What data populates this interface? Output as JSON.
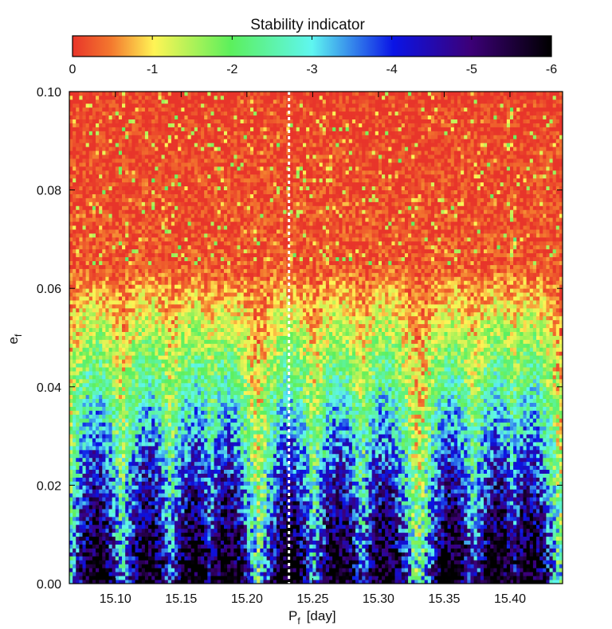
{
  "chart_data": {
    "type": "heatmap",
    "colorbar": {
      "title": "Stability indicator",
      "ticks": [
        "0",
        "-1",
        "-2",
        "-3",
        "-4",
        "-5",
        "-6"
      ],
      "range": [
        0,
        -6
      ],
      "colors": [
        "#e8352a",
        "#fff455",
        "#5cf05c",
        "#5ff6f0",
        "#0a14e6",
        "#3c0078",
        "#000000"
      ]
    },
    "x_axis": {
      "label_main": "P",
      "label_sub": "f",
      "label_unit": "[day]",
      "range": [
        15.065,
        15.44
      ],
      "ticks": [
        "15.10",
        "15.15",
        "15.20",
        "15.25",
        "15.30",
        "15.35",
        "15.40"
      ]
    },
    "y_axis": {
      "label_main": "e",
      "label_sub": "f",
      "range": [
        0.0,
        0.1
      ],
      "ticks": [
        "0.00",
        "0.02",
        "0.04",
        "0.06",
        "0.08",
        "0.10"
      ]
    },
    "reference_line": {
      "x": 15.232,
      "style": "dotted",
      "color": "#ffffff"
    },
    "stable_bands_center_x": [
      15.085,
      15.125,
      15.16,
      15.185,
      15.232,
      15.27,
      15.305,
      15.355,
      15.39,
      15.415
    ],
    "grid": false
  }
}
